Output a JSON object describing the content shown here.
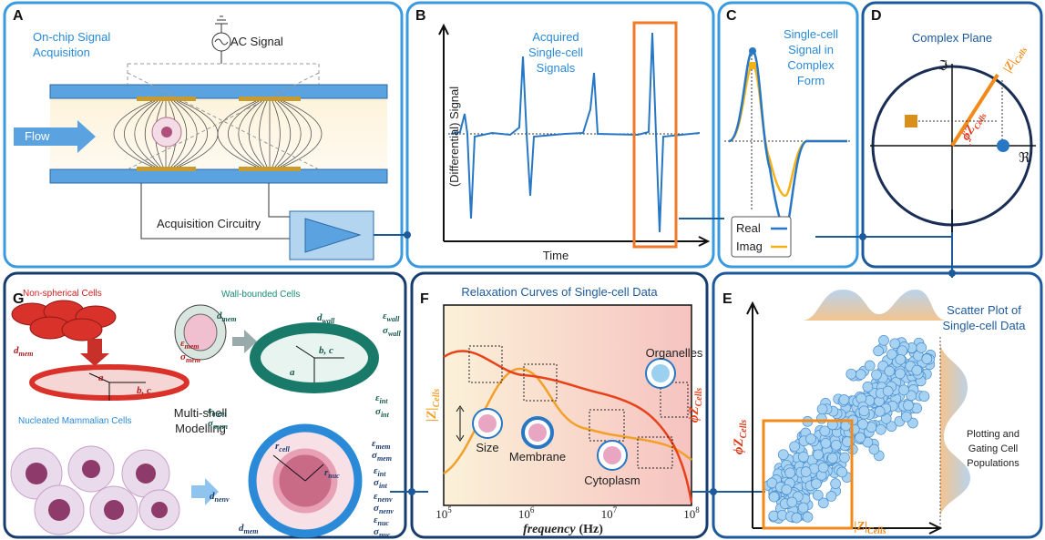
{
  "panels": {
    "a": {
      "letter": "A",
      "title": [
        "On-chip Signal",
        "Acquisition"
      ],
      "source": "AC Signal",
      "flow": "Flow",
      "circuit": "Acquisition Circuitry"
    },
    "b": {
      "letter": "B",
      "title": [
        "Acquired",
        "Single-cell",
        "Signals"
      ],
      "y_label": "(Differential) Signal",
      "x_label": "Time"
    },
    "c": {
      "letter": "C",
      "title": [
        "Single-cell",
        "Signal in",
        "Complex",
        "Form"
      ],
      "legend": [
        "Real",
        "Imag"
      ]
    },
    "d": {
      "letter": "D",
      "title": "Complex Plane",
      "imag_axis": "ℑ",
      "real_axis": "ℜ",
      "magnitude": {
        "base": "|Z|",
        "sub": "Cells"
      },
      "phase": {
        "base": "ϕZ",
        "sub": "Cells"
      }
    },
    "e": {
      "letter": "E",
      "title": [
        "Scatter Plot of",
        "Single-cell Data"
      ],
      "note": [
        "Plotting and",
        "Gating Cell",
        "Populations"
      ],
      "y_label": {
        "base": "ϕZ",
        "sub": "Cells"
      },
      "x_label": {
        "base": "|Z|",
        "sub": "Cells"
      }
    },
    "f": {
      "letter": "F",
      "title": "Relaxation Curves of Single-cell Data",
      "labels": [
        "Organelles",
        "Size",
        "Membrane",
        "Cytoplasm"
      ],
      "left_label": {
        "base": "|Z|",
        "sub": "Cells"
      },
      "right_label": {
        "base": "ϕZ",
        "sub": "Cells"
      },
      "x_ticks": [
        {
          "base": "10",
          "exp": "5"
        },
        {
          "base": "10",
          "exp": "6"
        },
        {
          "base": "10",
          "exp": "7"
        },
        {
          "base": "10",
          "exp": "8"
        }
      ],
      "x_label": {
        "main": "frequency",
        "unit": "(Hz)"
      }
    },
    "g": {
      "letter": "G",
      "groups": [
        "Non-spherical Cells",
        "Wall-bounded Cells",
        "Nucleated Mammalian Cells"
      ],
      "title": [
        "Multi-shell",
        "Modelling"
      ],
      "symbols": [
        {
          "base": "d",
          "sub": "mem"
        },
        {
          "base": "ε",
          "sub": "mem"
        },
        {
          "base": "σ",
          "sub": "mem"
        },
        {
          "base": "a"
        },
        {
          "base": "b, c"
        },
        {
          "base": "d",
          "sub": "mem"
        },
        {
          "base": "d",
          "sub": "wall"
        },
        {
          "base": "ε",
          "sub": "wall"
        },
        {
          "base": "σ",
          "sub": "wall"
        },
        {
          "base": "b, c"
        },
        {
          "base": "a"
        },
        {
          "base": "ε",
          "sub": "mem"
        },
        {
          "base": "σ",
          "sub": "mem"
        },
        {
          "base": "ε",
          "sub": "int"
        },
        {
          "base": "σ",
          "sub": "int"
        },
        {
          "base": "r",
          "sub": "cell"
        },
        {
          "base": "r",
          "sub": "nuc"
        },
        {
          "base": "ε",
          "sub": "mem"
        },
        {
          "base": "σ",
          "sub": "mem"
        },
        {
          "base": "ε",
          "sub": "int"
        },
        {
          "base": "σ",
          "sub": "int"
        },
        {
          "base": "ε",
          "sub": "nenv"
        },
        {
          "base": "σ",
          "sub": "nenv"
        },
        {
          "base": "ε",
          "sub": "nuc"
        },
        {
          "base": "σ",
          "sub": "nuc"
        },
        {
          "base": "d",
          "sub": "nenv"
        },
        {
          "base": "d",
          "sub": "mem"
        }
      ]
    }
  }
}
